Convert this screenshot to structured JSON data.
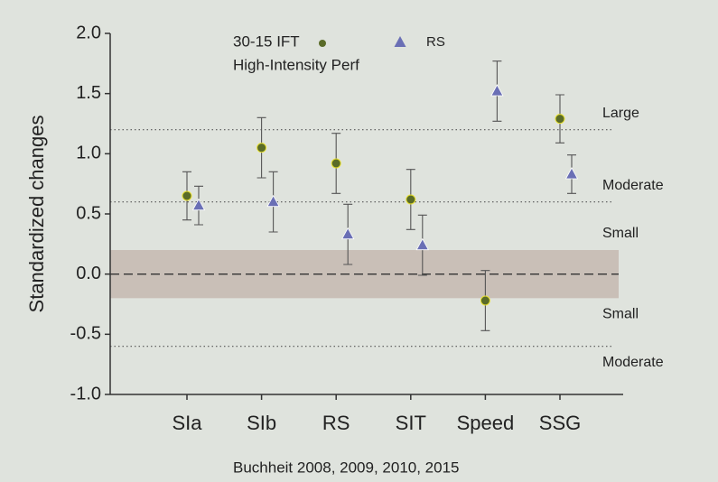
{
  "chart_data": {
    "type": "errorbar",
    "ylabel": "Standardized changes",
    "legend_subtitle": "High-Intensity Perf",
    "footer": "Buchheit 2008, 2009, 2010, 2015",
    "categories": [
      "SIa",
      "SIb",
      "RS",
      "SIT",
      "Speed",
      "SSG"
    ],
    "series": [
      {
        "name": "30-15 IFT",
        "color": "#5a6b28",
        "marker": "circle",
        "values": [
          0.65,
          1.05,
          0.92,
          0.62,
          -0.22,
          1.29
        ],
        "errors": [
          0.2,
          0.25,
          0.25,
          0.25,
          0.25,
          0.2
        ]
      },
      {
        "name": "RS",
        "color": "#6a6fb5",
        "marker": "triangle",
        "values": [
          0.57,
          0.6,
          0.33,
          0.24,
          1.52,
          0.83
        ],
        "errors": [
          0.16,
          0.25,
          0.25,
          0.25,
          0.25,
          0.16
        ]
      }
    ],
    "annotations": [
      {
        "text": "Large",
        "y": 1.2,
        "kind": "line"
      },
      {
        "text": "Moderate",
        "y": 0.6,
        "kind": "line"
      },
      {
        "text": "Small",
        "y": 0.2,
        "kind": "band-top"
      },
      {
        "text": "Small",
        "y": -0.2,
        "kind": "band-bottom"
      },
      {
        "text": "Moderate",
        "y": -0.6,
        "kind": "line"
      }
    ],
    "ylim": [
      -1,
      2
    ],
    "yticks": [
      {
        "value": 2,
        "label": "2.0"
      },
      1.5,
      {
        "value": 1,
        "label": "1.0"
      },
      0.5,
      {
        "value": 0,
        "label": "0.0"
      },
      -0.5,
      {
        "value": -1,
        "label": "-1.0"
      }
    ]
  }
}
